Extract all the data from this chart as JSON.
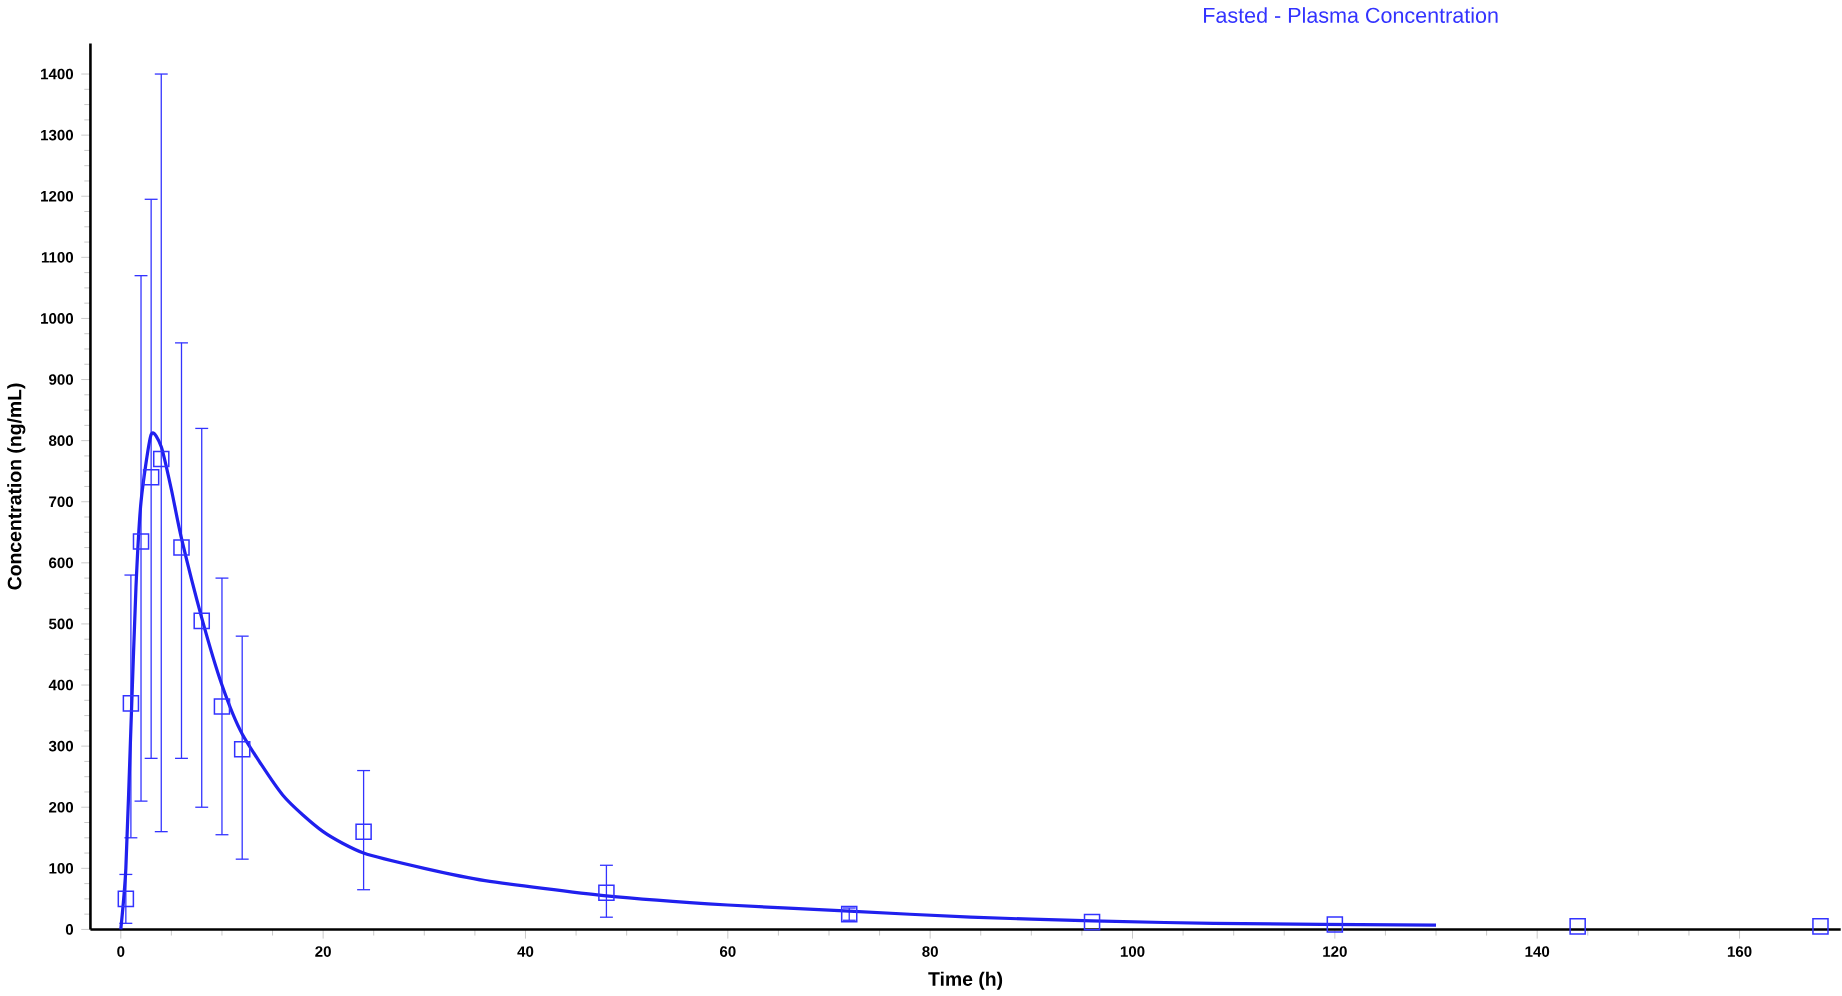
{
  "chart_data": {
    "type": "scatter",
    "title": "Fasted - Plasma Concentration",
    "xlabel": "Time (h)",
    "ylabel": "Concentration (ng/mL)",
    "xlim": [
      -3,
      170
    ],
    "ylim": [
      0,
      1450
    ],
    "xticks": [
      0,
      20,
      40,
      60,
      80,
      100,
      120,
      140,
      160
    ],
    "yticks": [
      0,
      100,
      200,
      300,
      400,
      500,
      600,
      700,
      800,
      900,
      1000,
      1100,
      1200,
      1300,
      1400
    ],
    "grid": false,
    "series": [
      {
        "color": "#3333ff",
        "marker": "square",
        "x": [
          0.5,
          1,
          2,
          3,
          4,
          6,
          8,
          10,
          12,
          24,
          48,
          72,
          96,
          120,
          144,
          168
        ],
        "values": [
          50,
          370,
          635,
          740,
          770,
          625,
          505,
          365,
          295,
          160,
          60,
          25,
          12,
          8,
          5,
          5
        ],
        "errors": [
          [
            10,
            90
          ],
          [
            150,
            580
          ],
          [
            210,
            1070
          ],
          [
            280,
            1195
          ],
          [
            160,
            1400
          ],
          [
            280,
            960
          ],
          [
            200,
            820
          ],
          [
            155,
            575
          ],
          [
            115,
            480
          ],
          [
            65,
            260
          ],
          [
            20,
            105
          ],
          [
            15,
            35
          ],
          null,
          null,
          null,
          null
        ]
      },
      {
        "type": "line",
        "color": "#2020ee",
        "marker": "none",
        "line_style": "solid",
        "x": [
          0,
          0.5,
          1,
          1.5,
          2,
          3,
          4,
          5,
          6,
          8,
          10,
          12,
          16,
          20,
          24,
          30,
          36,
          48,
          60,
          72,
          84,
          96,
          108,
          130
        ],
        "values": [
          0,
          100,
          330,
          560,
          700,
          810,
          790,
          720,
          640,
          510,
          400,
          320,
          220,
          160,
          125,
          100,
          80,
          55,
          40,
          30,
          20,
          14,
          10,
          7
        ]
      }
    ]
  }
}
